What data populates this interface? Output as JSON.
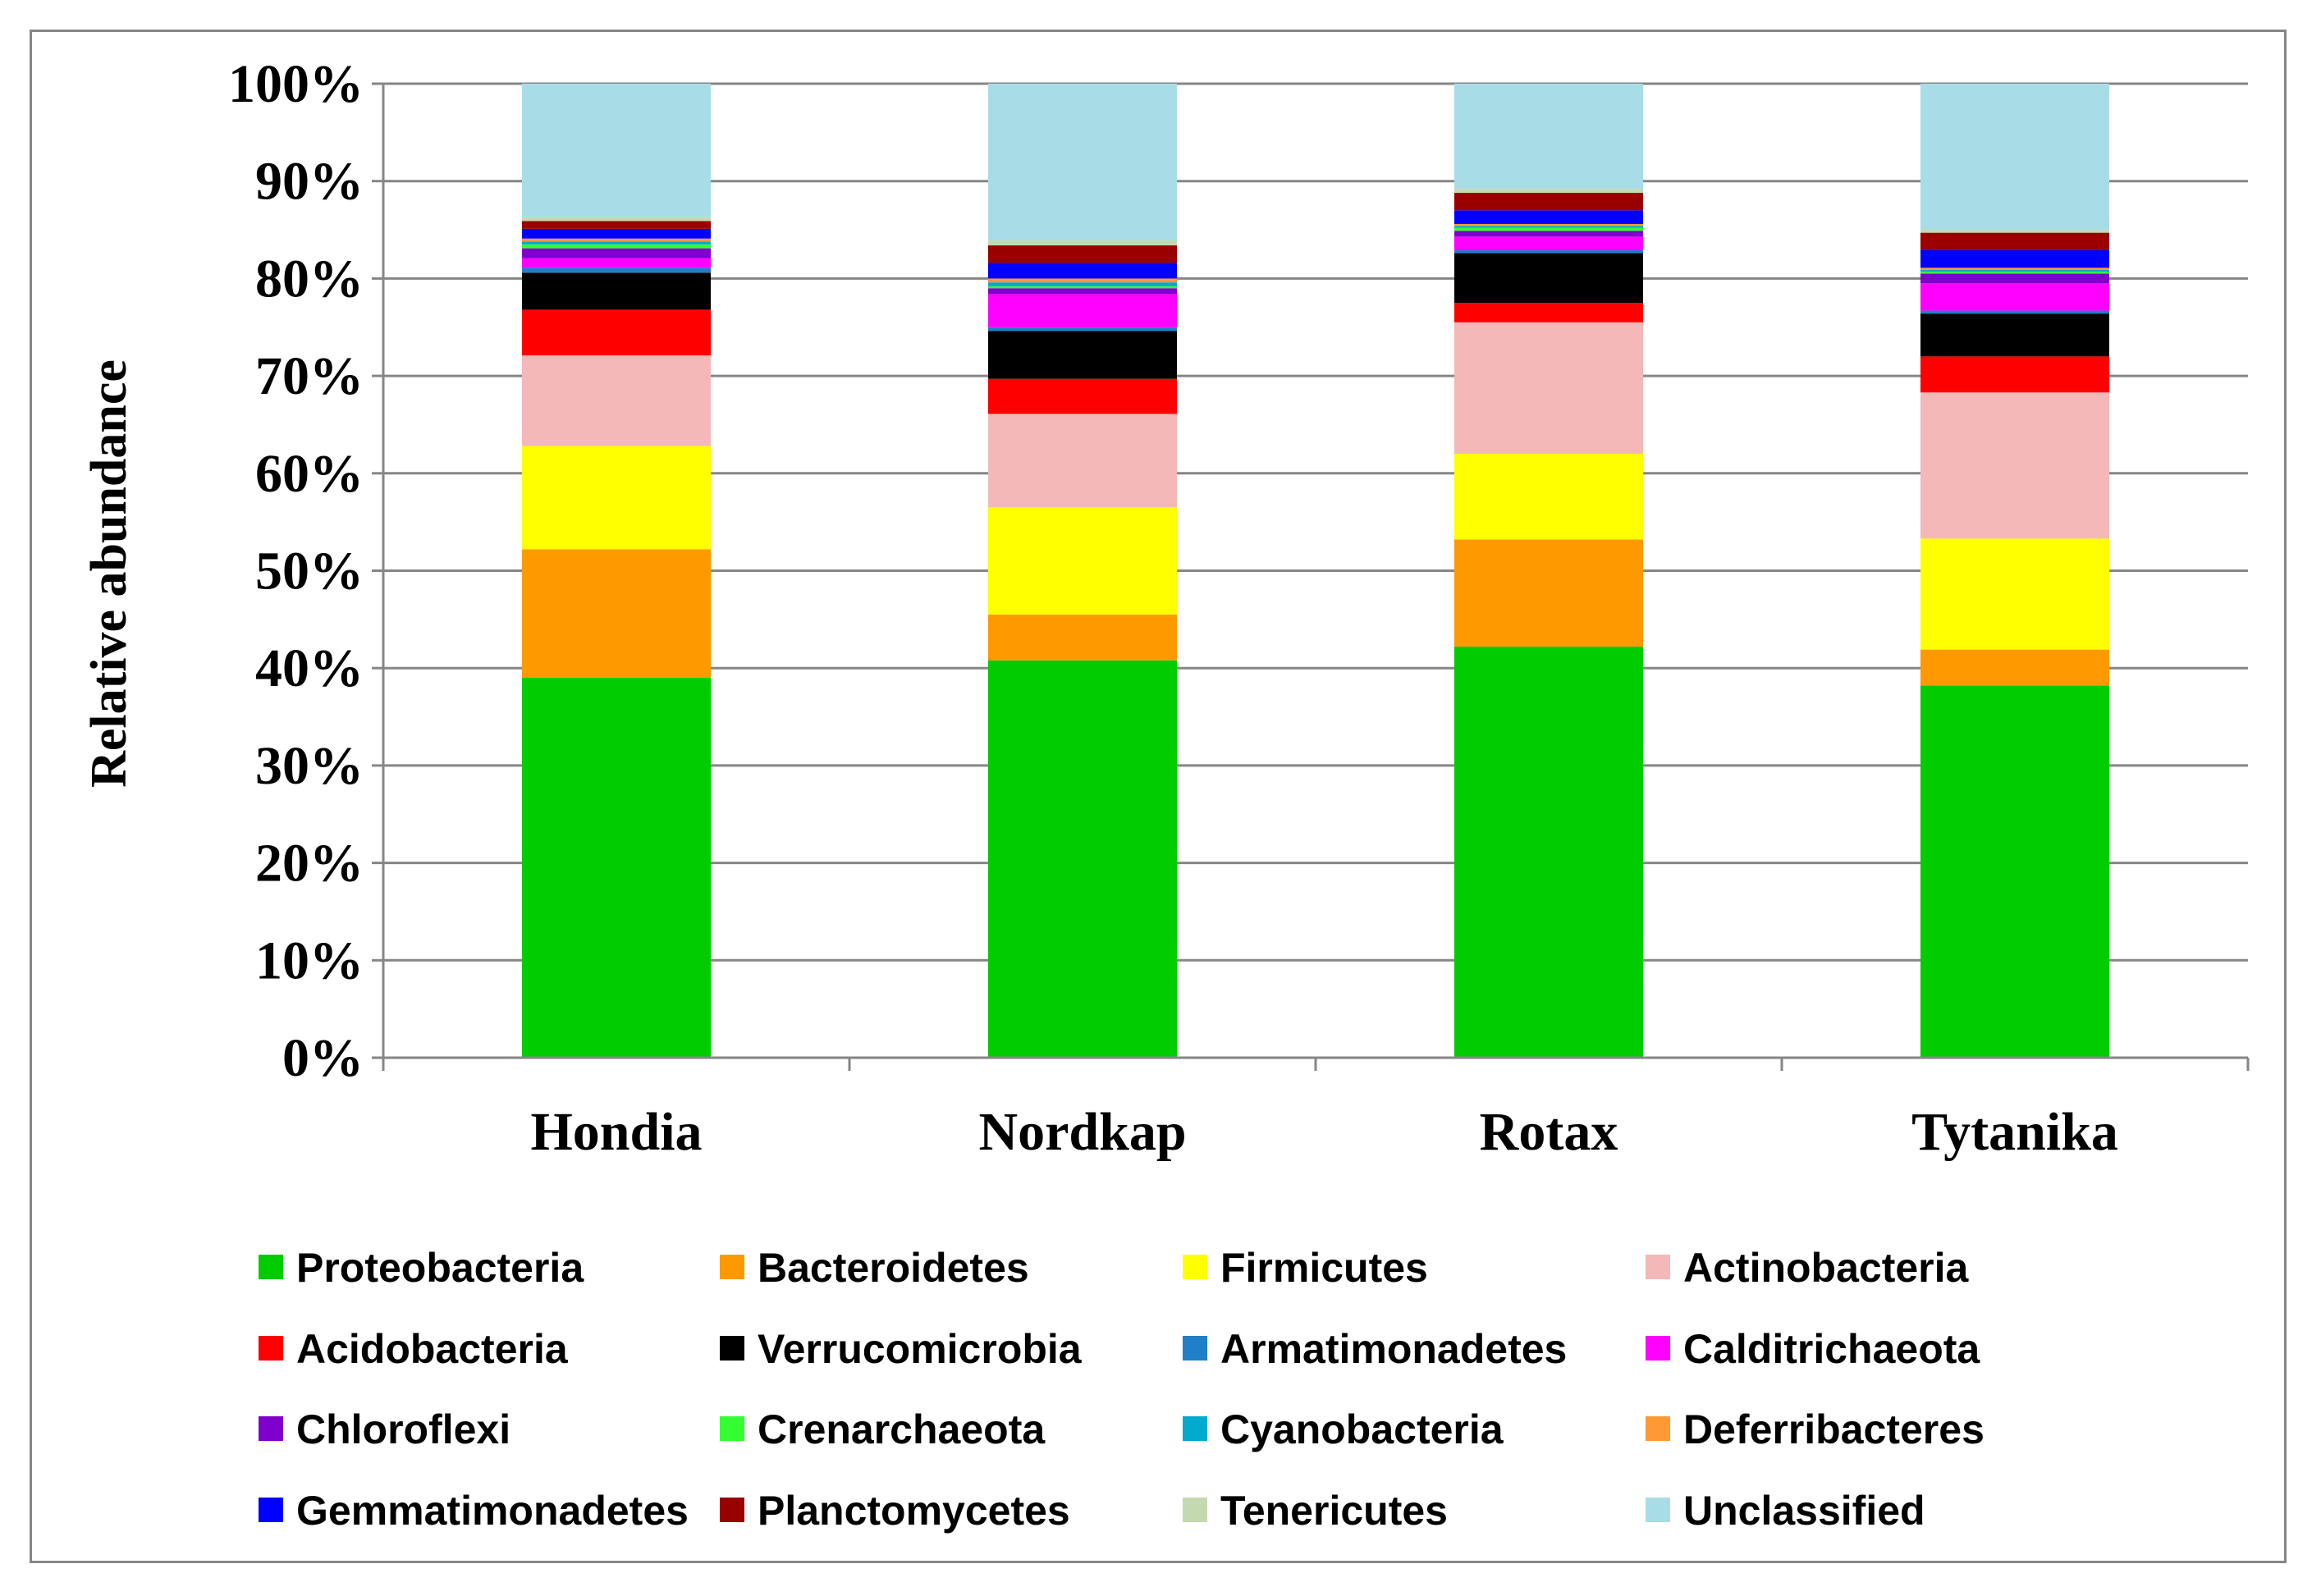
{
  "chart_data": {
    "type": "bar",
    "stacked": true,
    "normalized": true,
    "ylabel": "Relative abundance",
    "xlabel": "",
    "ylim": [
      0,
      100
    ],
    "ytick_values": [
      0,
      10,
      20,
      30,
      40,
      50,
      60,
      70,
      80,
      90,
      100
    ],
    "ytick_labels": [
      "0%",
      "10%",
      "20%",
      "30%",
      "40%",
      "50%",
      "60%",
      "70%",
      "80%",
      "90%",
      "100%"
    ],
    "grid": true,
    "legend_position": "bottom",
    "categories": [
      "Hondia",
      "Nordkap",
      "Rotax",
      "Tytanika"
    ],
    "series": [
      {
        "name": "Proteobacteria",
        "color": "#00CC00",
        "values": [
          39.0,
          40.8,
          42.2,
          38.2
        ]
      },
      {
        "name": "Bacteroidetes",
        "color": "#FF9900",
        "values": [
          13.2,
          4.7,
          11.0,
          3.7
        ]
      },
      {
        "name": "Firmicutes",
        "color": "#FFFF00",
        "values": [
          10.6,
          11.0,
          8.8,
          11.4
        ]
      },
      {
        "name": "Actinobacteria",
        "color": "#F4B8B8",
        "values": [
          9.3,
          9.6,
          13.5,
          15.0
        ]
      },
      {
        "name": "Acidobacteria",
        "color": "#FF0000",
        "values": [
          4.7,
          3.6,
          2.0,
          3.7
        ]
      },
      {
        "name": "Verrucomicrobia",
        "color": "#000000",
        "values": [
          3.8,
          4.9,
          5.1,
          4.4
        ]
      },
      {
        "name": "Armatimonadetes",
        "color": "#1F7FC8",
        "values": [
          0.5,
          0.4,
          0.3,
          0.3
        ]
      },
      {
        "name": "Calditrichaeota",
        "color": "#FF00FF",
        "values": [
          1.0,
          3.4,
          1.4,
          2.8
        ]
      },
      {
        "name": "Chloroflexi",
        "color": "#7F00CC",
        "values": [
          1.0,
          0.6,
          0.6,
          1.0
        ]
      },
      {
        "name": "Crenarchaeota",
        "color": "#33FF33",
        "values": [
          0.4,
          0.2,
          0.3,
          0.2
        ]
      },
      {
        "name": "Cyanobacteria",
        "color": "#00AACC",
        "values": [
          0.3,
          0.4,
          0.2,
          0.2
        ]
      },
      {
        "name": "Deferribacteres",
        "color": "#FF9933",
        "values": [
          0.3,
          0.4,
          0.2,
          0.2
        ]
      },
      {
        "name": "Gemmatimonadetes",
        "color": "#0000FF",
        "values": [
          1.0,
          1.6,
          1.4,
          1.8
        ]
      },
      {
        "name": "Planctomycetes",
        "color": "#990000",
        "values": [
          0.8,
          1.8,
          1.8,
          1.8
        ]
      },
      {
        "name": "Tenericutes",
        "color": "#C4D9B0",
        "values": [
          0.4,
          0.5,
          0.4,
          0.3
        ]
      },
      {
        "name": "Unclassified",
        "color": "#A8DDE8",
        "values": [
          13.7,
          16.1,
          10.8,
          15.0
        ]
      }
    ],
    "gridline_color": "#868686",
    "axis_color": "#868686"
  }
}
